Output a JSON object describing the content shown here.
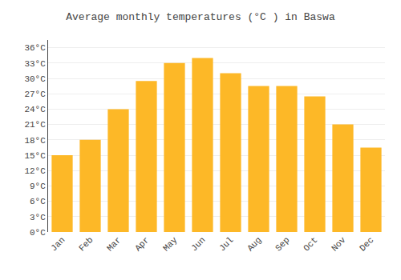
{
  "chart_data": {
    "type": "bar",
    "title": "Average monthly temperatures (°C ) in Baswa",
    "categories": [
      "Jan",
      "Feb",
      "Mar",
      "Apr",
      "May",
      "Jun",
      "Jul",
      "Aug",
      "Sep",
      "Oct",
      "Nov",
      "Dec"
    ],
    "values": [
      15,
      18,
      24,
      29.5,
      33,
      34,
      31,
      28.5,
      28.5,
      26.5,
      21,
      16.5
    ],
    "color": "#FDB827",
    "ylim": [
      0,
      37.5
    ],
    "yticks": [
      {
        "value": 0,
        "label": "0°C"
      },
      {
        "value": 3,
        "label": "3°C"
      },
      {
        "value": 6,
        "label": "6°C"
      },
      {
        "value": 9,
        "label": "9°C"
      },
      {
        "value": 12,
        "label": "12°C"
      },
      {
        "value": 15,
        "label": "15°C"
      },
      {
        "value": 18,
        "label": "18°C"
      },
      {
        "value": 21,
        "label": "21°C"
      },
      {
        "value": 24,
        "label": "24°C"
      },
      {
        "value": 27,
        "label": "27°C"
      },
      {
        "value": 30,
        "label": "30°C"
      },
      {
        "value": 33,
        "label": "33°C"
      },
      {
        "value": 36,
        "label": "36°C"
      }
    ],
    "grid": true
  }
}
